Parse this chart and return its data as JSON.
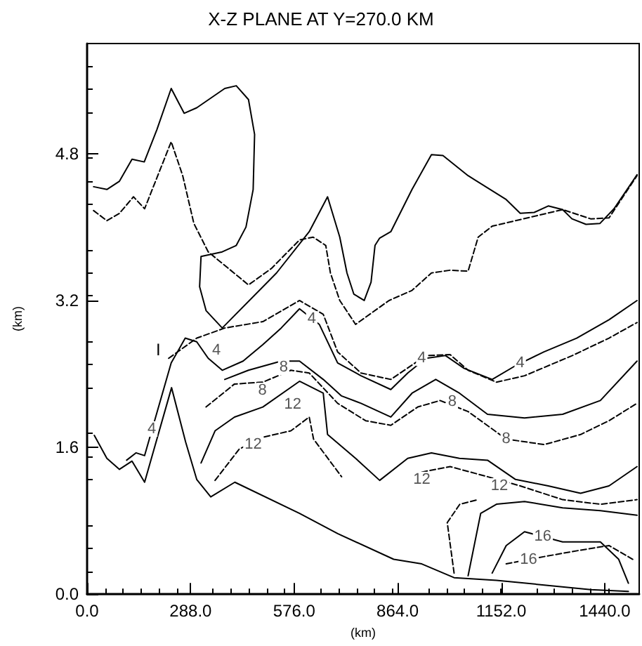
{
  "chart_data": {
    "type": "line",
    "title": "X-Z PLANE AT Y=270.0 KM",
    "xlabel": "(km)",
    "ylabel": "(km)",
    "xlim": [
      0,
      1536
    ],
    "ylim": [
      0,
      6
    ],
    "xticks": [
      {
        "value": 0,
        "label": "0.0"
      },
      {
        "value": 288,
        "label": "288.0"
      },
      {
        "value": 576,
        "label": "576.0"
      },
      {
        "value": 864,
        "label": "864.0"
      },
      {
        "value": 1152,
        "label": "1152.0"
      },
      {
        "value": 1440,
        "label": "1440.0"
      }
    ],
    "yticks": [
      {
        "value": 0,
        "label": "0.0"
      },
      {
        "value": 1.6,
        "label": "1.6"
      },
      {
        "value": 3.2,
        "label": "3.2"
      },
      {
        "value": 4.8,
        "label": "4.8"
      }
    ],
    "grid": false,
    "marker": "none",
    "series": [
      {
        "color": "#000000",
        "line_style": "solid",
        "x": [
          20,
          55,
          90,
          125,
          160,
          235,
          274,
          305,
          344,
          411,
          591,
          697,
          853,
          931,
          1021,
          1139,
          1272,
          1401,
          1506
        ],
        "values": [
          1.73,
          1.48,
          1.36,
          1.45,
          1.22,
          2.25,
          1.66,
          1.25,
          1.06,
          1.22,
          0.88,
          0.66,
          0.38,
          0.33,
          0.18,
          0.15,
          0.1,
          0.05,
          0.03
        ]
      },
      {
        "color": "#000000",
        "line_style": "solid",
        "x": [
          18,
          55,
          90,
          125,
          159,
          194,
          234,
          270,
          305,
          383,
          415,
          449,
          466,
          462,
          442,
          415,
          376,
          317,
          313,
          331,
          376,
          527,
          618,
          669,
          703,
          723,
          742,
          771,
          790,
          801,
          814,
          845,
          904,
          958,
          990,
          1060,
          1166,
          1205,
          1244,
          1283,
          1323,
          1349,
          1388,
          1427,
          1466,
          1530
        ],
        "values": [
          4.44,
          4.41,
          4.5,
          4.74,
          4.71,
          5.06,
          5.51,
          5.24,
          5.3,
          5.51,
          5.54,
          5.39,
          5.01,
          4.41,
          4.0,
          3.8,
          3.73,
          3.68,
          3.35,
          3.09,
          2.9,
          3.5,
          3.95,
          4.33,
          3.89,
          3.5,
          3.27,
          3.2,
          3.4,
          3.8,
          3.88,
          3.95,
          4.41,
          4.79,
          4.78,
          4.56,
          4.3,
          4.15,
          4.16,
          4.23,
          4.19,
          4.09,
          4.03,
          4.04,
          4.2,
          4.57
        ]
      },
      {
        "color": "#000000",
        "line_style": "dashed",
        "x": [
          18,
          55,
          90,
          129,
          160,
          234,
          266,
          297,
          337,
          449,
          513,
          591,
          629,
          664,
          677,
          703,
          747,
          840,
          904,
          958,
          1010,
          1060,
          1088,
          1127,
          1323,
          1401,
          1452,
          1530
        ],
        "values": [
          4.18,
          4.07,
          4.15,
          4.33,
          4.2,
          4.93,
          4.56,
          4.04,
          3.73,
          3.37,
          3.55,
          3.86,
          3.89,
          3.8,
          3.5,
          3.2,
          2.94,
          3.2,
          3.31,
          3.5,
          3.53,
          3.52,
          3.89,
          4.01,
          4.19,
          4.09,
          4.1,
          4.56
        ]
      },
      {
        "color": "#000000",
        "line_style": "solid",
        "x": [
          110,
          136,
          160,
          234,
          273,
          305,
          337,
          376,
          434,
          489,
          540,
          591,
          646,
          697,
          762,
          845,
          892,
          943,
          997,
          1049,
          1127,
          1192,
          1271,
          1362,
          1452,
          1530
        ],
        "values": [
          1.46,
          1.54,
          1.51,
          2.52,
          2.79,
          2.75,
          2.57,
          2.44,
          2.54,
          2.72,
          2.9,
          3.11,
          2.94,
          2.52,
          2.38,
          2.23,
          2.41,
          2.57,
          2.6,
          2.46,
          2.34,
          2.49,
          2.64,
          2.79,
          2.99,
          3.2
        ]
      },
      {
        "color": "#000000",
        "line_style": "dashed",
        "x": [
          227,
          305,
          383,
          489,
          591,
          657,
          697,
          762,
          845,
          943,
          1010,
          1060,
          1139,
          1217,
          1350,
          1452,
          1530
        ],
        "values": [
          2.57,
          2.79,
          2.9,
          2.97,
          3.2,
          3.05,
          2.64,
          2.41,
          2.34,
          2.6,
          2.61,
          2.44,
          2.31,
          2.38,
          2.6,
          2.79,
          2.96
        ]
      },
      {
        "color": "#000000",
        "line_style": "solid",
        "x": [
          383,
          449,
          540,
          591,
          657,
          708,
          762,
          845,
          904,
          970,
          1036,
          1114,
          1217,
          1323,
          1428,
          1530
        ],
        "values": [
          2.34,
          2.44,
          2.54,
          2.54,
          2.34,
          2.16,
          2.08,
          1.93,
          2.19,
          2.34,
          2.19,
          1.96,
          1.92,
          1.96,
          2.11,
          2.54
        ]
      },
      {
        "color": "#000000",
        "line_style": "dashed",
        "x": [
          331,
          410,
          489,
          567,
          618,
          697,
          775,
          845,
          920,
          982,
          1060,
          1166,
          1272,
          1373,
          1452,
          1530
        ],
        "values": [
          2.04,
          2.29,
          2.31,
          2.44,
          2.41,
          2.08,
          1.89,
          1.84,
          2.04,
          2.11,
          1.99,
          1.69,
          1.63,
          1.74,
          1.89,
          2.08
        ]
      },
      {
        "color": "#000000",
        "line_style": "solid",
        "x": [
          317,
          356,
          410,
          489,
          591,
          657,
          669,
          747,
          814,
          892,
          958,
          1036,
          1114,
          1192,
          1283,
          1373,
          1452,
          1530
        ],
        "values": [
          1.43,
          1.78,
          1.93,
          2.04,
          2.32,
          2.19,
          1.74,
          1.48,
          1.24,
          1.48,
          1.54,
          1.48,
          1.46,
          1.25,
          1.18,
          1.1,
          1.18,
          1.39
        ]
      },
      {
        "color": "#000000",
        "line_style": "dashed",
        "x": [
          356,
          423,
          489,
          567,
          618,
          630,
          708,
          800,
          931,
          1010,
          1114,
          1205,
          1323,
          1428,
          1530
        ],
        "values": [
          1.24,
          1.58,
          1.71,
          1.78,
          1.93,
          1.69,
          1.28,
          null,
          1.33,
          1.39,
          1.28,
          1.18,
          1.03,
          0.98,
          1.03
        ]
      },
      {
        "color": "#000000",
        "line_style": "solid",
        "x": [
          1060,
          1095,
          1139,
          1217,
          1323,
          1428,
          1530
        ],
        "values": [
          0.2,
          0.88,
          0.98,
          1.01,
          0.94,
          0.91,
          0.86
        ]
      },
      {
        "color": "#000000",
        "line_style": "solid",
        "x": [
          1127,
          1166,
          1217,
          1323,
          1428,
          1479,
          1506
        ],
        "values": [
          0.23,
          0.53,
          0.68,
          0.57,
          0.57,
          0.38,
          0.12
        ]
      },
      {
        "color": "#000000",
        "line_style": "dashed",
        "x": [
          1021,
          1002,
          1037,
          1088
        ],
        "values": [
          0.23,
          0.78,
          0.98,
          1.03
        ]
      },
      {
        "color": "#000000",
        "line_style": "dashed",
        "x": [
          1166,
          1272,
          1373,
          1452,
          1518
        ],
        "values": [
          0.33,
          0.41,
          0.48,
          0.53,
          0.38
        ]
      }
    ],
    "annotations": [
      {
        "text": "4",
        "x": 360,
        "y": 2.66
      },
      {
        "text": "4",
        "x": 180,
        "y": 1.8
      },
      {
        "text": "4",
        "x": 625,
        "y": 3.0
      },
      {
        "text": "4",
        "x": 931,
        "y": 2.57
      },
      {
        "text": "4",
        "x": 1205,
        "y": 2.52
      },
      {
        "text": "8",
        "x": 488,
        "y": 2.22
      },
      {
        "text": "8",
        "x": 547,
        "y": 2.47
      },
      {
        "text": "8",
        "x": 1016,
        "y": 2.1
      },
      {
        "text": "8",
        "x": 1166,
        "y": 1.69
      },
      {
        "text": "12",
        "x": 572,
        "y": 2.07
      },
      {
        "text": "12",
        "x": 462,
        "y": 1.63
      },
      {
        "text": "12",
        "x": 931,
        "y": 1.25
      },
      {
        "text": "12",
        "x": 1147,
        "y": 1.18
      },
      {
        "text": "16",
        "x": 1268,
        "y": 0.63
      },
      {
        "text": "16",
        "x": 1228,
        "y": 0.38
      },
      "I"
    ]
  }
}
